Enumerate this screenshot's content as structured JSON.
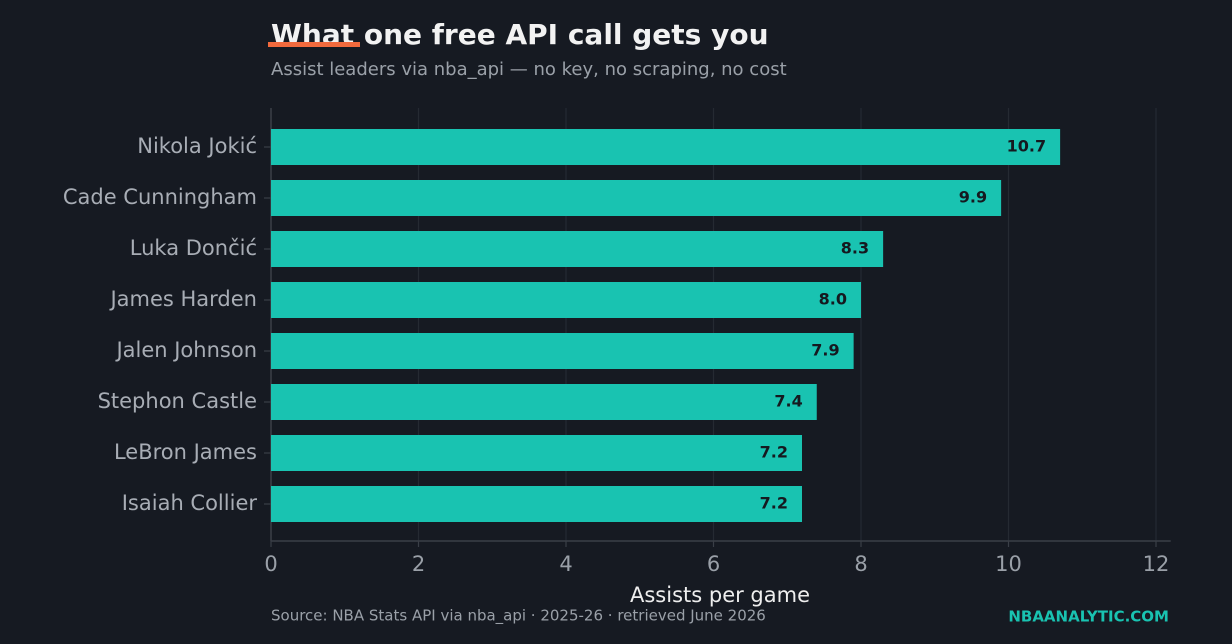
{
  "chart_data": {
    "type": "barh",
    "title": "What one free API call gets you",
    "subtitle": "Assist leaders via nba_api — no key, no scraping, no cost",
    "xlabel": "Assists per game",
    "source": "Source: NBA Stats API via nba_api · 2025-26 · retrieved June 2026",
    "brand": "NBAANALYTIC.COM",
    "categories": [
      "Nikola Jokić",
      "Cade Cunningham",
      "Luka Dončić",
      "James Harden",
      "Jalen Johnson",
      "Stephon Castle",
      "LeBron James",
      "Isaiah Collier"
    ],
    "values": [
      10.7,
      9.9,
      8.3,
      8.0,
      7.9,
      7.4,
      7.2,
      7.2
    ],
    "value_labels": [
      "10.7",
      "9.9",
      "8.3",
      "8.0",
      "7.9",
      "7.4",
      "7.2",
      "7.2"
    ],
    "color": "#19c3b1",
    "xlim": [
      0,
      12.2
    ],
    "xticks": [
      0,
      2,
      4,
      6,
      8,
      10,
      12
    ],
    "grid": true
  }
}
